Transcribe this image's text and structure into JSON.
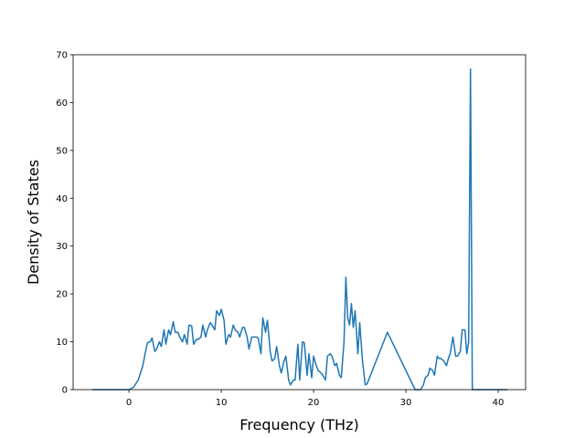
{
  "chart_data": {
    "type": "line",
    "xlabel": "Frequency (THz)",
    "ylabel": "Density of States",
    "xlim": [
      -6.05,
      42.97
    ],
    "ylim": [
      0,
      70
    ],
    "xticks": [
      0,
      10,
      20,
      30,
      40
    ],
    "yticks": [
      0,
      10,
      20,
      30,
      40,
      50,
      60,
      70
    ],
    "series": [
      {
        "color": "#1f77b4",
        "x": [
          -4,
          -2,
          0,
          0.5,
          1,
          1.5,
          1.8,
          2,
          2.3,
          2.5,
          2.8,
          3,
          3.3,
          3.5,
          3.8,
          4,
          4.3,
          4.5,
          4.8,
          5,
          5.3,
          5.5,
          5.8,
          6,
          6.3,
          6.5,
          6.8,
          7,
          7.3,
          7.5,
          7.8,
          8,
          8.3,
          8.5,
          8.8,
          9,
          9.3,
          9.5,
          9.8,
          10,
          10.3,
          10.5,
          10.8,
          11,
          11.3,
          11.5,
          11.8,
          12,
          12.3,
          12.5,
          12.8,
          13,
          13.3,
          13.5,
          13.8,
          14,
          14.3,
          14.5,
          14.8,
          15,
          15.3,
          15.5,
          15.8,
          16,
          16.3,
          16.5,
          16.8,
          17,
          17.3,
          17.5,
          17.8,
          18,
          18.3,
          18.5,
          18.8,
          19,
          19.3,
          19.5,
          19.8,
          20,
          20.3,
          20.5,
          20.8,
          21,
          21.3,
          21.5,
          21.8,
          22,
          22.3,
          22.5,
          22.8,
          23,
          23.3,
          23.5,
          23.7,
          23.9,
          24.1,
          24.3,
          24.5,
          24.8,
          25,
          25.3,
          25.6,
          25.8,
          28,
          31,
          31.4,
          31.6,
          31.9,
          32.1,
          32.4,
          32.6,
          32.9,
          33.1,
          33.4,
          33.6,
          33.8,
          34.1,
          34.4,
          34.6,
          34.8,
          35.1,
          35.4,
          35.6,
          35.9,
          36.1,
          36.4,
          36.6,
          36.8,
          37,
          37.2,
          39,
          41
        ],
        "values": [
          0,
          0,
          0,
          0.5,
          2,
          5,
          8,
          9.8,
          10,
          10.8,
          8,
          8.5,
          10,
          9,
          12.5,
          9.5,
          12.5,
          11.5,
          14.2,
          12,
          12,
          11,
          10,
          11.5,
          9.5,
          13.5,
          13.3,
          9.5,
          10.5,
          10.5,
          11,
          13.5,
          11,
          12.5,
          14,
          13.5,
          12.5,
          16.5,
          15.5,
          16.8,
          14.5,
          9.5,
          11.5,
          11,
          13.5,
          12.5,
          12,
          11,
          13,
          13,
          11,
          8.5,
          11,
          11,
          11,
          10.8,
          7.5,
          15,
          12,
          14.5,
          8,
          6,
          6.5,
          9,
          5,
          3.5,
          6,
          7,
          2,
          1,
          2,
          2,
          9.5,
          2,
          10,
          9.8,
          3,
          7.5,
          2.5,
          7,
          5,
          4,
          3.5,
          3,
          2,
          7,
          7.5,
          7,
          5,
          5.5,
          3,
          2.5,
          10,
          23.5,
          15,
          13.5,
          18,
          13,
          16.5,
          7.5,
          14,
          6,
          1,
          1.2,
          12,
          0,
          0,
          0,
          1,
          2.5,
          3,
          4.5,
          4,
          3,
          7,
          6.5,
          6.5,
          6,
          5,
          6.5,
          7.5,
          11,
          7,
          7,
          8,
          12.5,
          12.5,
          7.5,
          10,
          67,
          0,
          0,
          0
        ]
      }
    ]
  }
}
